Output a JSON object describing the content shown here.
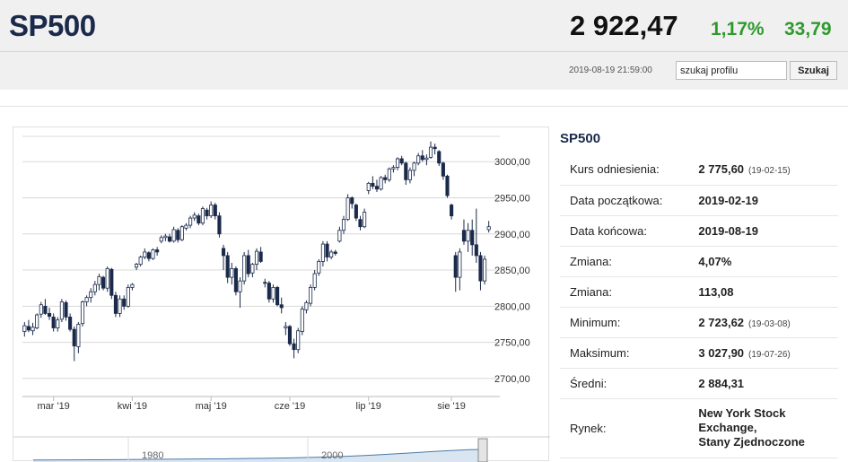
{
  "header": {
    "title": "SP500",
    "price": "2 922,47",
    "change_pct": "1,17%",
    "change_val": "33,79",
    "timestamp": "2019-08-19 21:59:00",
    "search_value": "szukaj profilu",
    "search_button": "Szukaj"
  },
  "info": {
    "title": "SP500",
    "rows": [
      {
        "label": "Kurs odniesienia:",
        "value": "2 775,60",
        "date": "(19-02-15)"
      },
      {
        "label": "Data początkowa:",
        "value": "2019-02-19",
        "date": ""
      },
      {
        "label": "Data końcowa:",
        "value": "2019-08-19",
        "date": ""
      },
      {
        "label": "Zmiana:",
        "value": "4,07%",
        "date": ""
      },
      {
        "label": "Zmiana:",
        "value": "113,08",
        "date": ""
      },
      {
        "label": "Minimum:",
        "value": "2 723,62",
        "date": "(19-03-08)"
      },
      {
        "label": "Maksimum:",
        "value": "3 027,90",
        "date": "(19-07-26)"
      },
      {
        "label": "Średni:",
        "value": "2 884,31",
        "date": ""
      }
    ],
    "market_label": "Rynek:",
    "market_lines": [
      "New York Stock",
      "Exchange,",
      "Stany Zjednoczone"
    ]
  },
  "colors": {
    "up_fill": "#ffffff",
    "down_fill": "#1b2a4a",
    "candle_stroke": "#1b2a4a",
    "grid": "#d8d8d8",
    "nav_fill": "#d9e6f2",
    "nav_line": "#4a79a8",
    "change_positive": "#2e9a2e"
  },
  "chart_data": {
    "type": "candlestick",
    "y_ticks": [
      "3000,00",
      "2950,00",
      "2900,00",
      "2850,00",
      "2800,00",
      "2750,00",
      "2700,00"
    ],
    "y_tick_values": [
      3000,
      2950,
      2900,
      2850,
      2800,
      2750,
      2700
    ],
    "ylim": [
      2685,
      3035
    ],
    "x_labels": [
      "mar '19",
      "kwi '19",
      "maj '19",
      "cze '19",
      "lip '19",
      "sie '19"
    ],
    "x_label_index": [
      7,
      26,
      45,
      64,
      83,
      103
    ],
    "navigator_labels": [
      "1980",
      "2000"
    ],
    "candles": [
      {
        "o": 2765,
        "h": 2778,
        "l": 2758,
        "c": 2773
      },
      {
        "o": 2772,
        "h": 2781,
        "l": 2764,
        "c": 2767
      },
      {
        "o": 2766,
        "h": 2777,
        "l": 2760,
        "c": 2771
      },
      {
        "o": 2770,
        "h": 2790,
        "l": 2768,
        "c": 2788
      },
      {
        "o": 2789,
        "h": 2806,
        "l": 2784,
        "c": 2802
      },
      {
        "o": 2800,
        "h": 2810,
        "l": 2788,
        "c": 2790
      },
      {
        "o": 2790,
        "h": 2798,
        "l": 2781,
        "c": 2786
      },
      {
        "o": 2785,
        "h": 2790,
        "l": 2765,
        "c": 2770
      },
      {
        "o": 2770,
        "h": 2785,
        "l": 2765,
        "c": 2781
      },
      {
        "o": 2782,
        "h": 2810,
        "l": 2778,
        "c": 2806
      },
      {
        "o": 2805,
        "h": 2808,
        "l": 2780,
        "c": 2785
      },
      {
        "o": 2785,
        "h": 2790,
        "l": 2765,
        "c": 2768
      },
      {
        "o": 2768,
        "h": 2772,
        "l": 2724,
        "c": 2745
      },
      {
        "o": 2744,
        "h": 2778,
        "l": 2735,
        "c": 2775
      },
      {
        "o": 2776,
        "h": 2808,
        "l": 2772,
        "c": 2806
      },
      {
        "o": 2806,
        "h": 2815,
        "l": 2800,
        "c": 2812
      },
      {
        "o": 2812,
        "h": 2825,
        "l": 2805,
        "c": 2820
      },
      {
        "o": 2820,
        "h": 2835,
        "l": 2815,
        "c": 2830
      },
      {
        "o": 2830,
        "h": 2845,
        "l": 2822,
        "c": 2841
      },
      {
        "o": 2840,
        "h": 2842,
        "l": 2822,
        "c": 2825
      },
      {
        "o": 2825,
        "h": 2855,
        "l": 2820,
        "c": 2852
      },
      {
        "o": 2851,
        "h": 2853,
        "l": 2810,
        "c": 2815
      },
      {
        "o": 2815,
        "h": 2820,
        "l": 2785,
        "c": 2790
      },
      {
        "o": 2790,
        "h": 2815,
        "l": 2785,
        "c": 2810
      },
      {
        "o": 2810,
        "h": 2815,
        "l": 2795,
        "c": 2800
      },
      {
        "o": 2800,
        "h": 2830,
        "l": 2798,
        "c": 2826
      },
      {
        "o": 2826,
        "h": 2832,
        "l": 2822,
        "c": 2830
      },
      {
        "o": 2854,
        "h": 2860,
        "l": 2850,
        "c": 2858
      },
      {
        "o": 2858,
        "h": 2870,
        "l": 2855,
        "c": 2868
      },
      {
        "o": 2868,
        "h": 2880,
        "l": 2865,
        "c": 2875
      },
      {
        "o": 2874,
        "h": 2876,
        "l": 2862,
        "c": 2866
      },
      {
        "o": 2866,
        "h": 2880,
        "l": 2864,
        "c": 2878
      },
      {
        "o": 2878,
        "h": 2882,
        "l": 2870,
        "c": 2875
      },
      {
        "o": 2890,
        "h": 2898,
        "l": 2887,
        "c": 2895
      },
      {
        "o": 2895,
        "h": 2900,
        "l": 2890,
        "c": 2897
      },
      {
        "o": 2896,
        "h": 2900,
        "l": 2888,
        "c": 2890
      },
      {
        "o": 2890,
        "h": 2910,
        "l": 2888,
        "c": 2906
      },
      {
        "o": 2905,
        "h": 2908,
        "l": 2888,
        "c": 2892
      },
      {
        "o": 2892,
        "h": 2912,
        "l": 2890,
        "c": 2910
      },
      {
        "o": 2908,
        "h": 2915,
        "l": 2905,
        "c": 2912
      },
      {
        "o": 2912,
        "h": 2925,
        "l": 2908,
        "c": 2922
      },
      {
        "o": 2922,
        "h": 2930,
        "l": 2918,
        "c": 2926
      },
      {
        "o": 2925,
        "h": 2928,
        "l": 2912,
        "c": 2915
      },
      {
        "o": 2915,
        "h": 2938,
        "l": 2912,
        "c": 2935
      },
      {
        "o": 2933,
        "h": 2936,
        "l": 2920,
        "c": 2925
      },
      {
        "o": 2925,
        "h": 2945,
        "l": 2922,
        "c": 2940
      },
      {
        "o": 2940,
        "h": 2943,
        "l": 2920,
        "c": 2925
      },
      {
        "o": 2925,
        "h": 2930,
        "l": 2895,
        "c": 2900
      },
      {
        "o": 2880,
        "h": 2885,
        "l": 2850,
        "c": 2870
      },
      {
        "o": 2870,
        "h": 2875,
        "l": 2832,
        "c": 2840
      },
      {
        "o": 2840,
        "h": 2860,
        "l": 2830,
        "c": 2852
      },
      {
        "o": 2852,
        "h": 2855,
        "l": 2815,
        "c": 2820
      },
      {
        "o": 2820,
        "h": 2840,
        "l": 2798,
        "c": 2835
      },
      {
        "o": 2835,
        "h": 2875,
        "l": 2830,
        "c": 2870
      },
      {
        "o": 2870,
        "h": 2878,
        "l": 2840,
        "c": 2845
      },
      {
        "o": 2846,
        "h": 2860,
        "l": 2840,
        "c": 2858
      },
      {
        "o": 2858,
        "h": 2880,
        "l": 2850,
        "c": 2876
      },
      {
        "o": 2875,
        "h": 2882,
        "l": 2860,
        "c": 2862
      },
      {
        "o": 2833,
        "h": 2838,
        "l": 2826,
        "c": 2832
      },
      {
        "o": 2832,
        "h": 2835,
        "l": 2805,
        "c": 2810
      },
      {
        "o": 2810,
        "h": 2830,
        "l": 2805,
        "c": 2826
      },
      {
        "o": 2826,
        "h": 2828,
        "l": 2800,
        "c": 2802
      },
      {
        "o": 2802,
        "h": 2812,
        "l": 2790,
        "c": 2798
      },
      {
        "o": 2770,
        "h": 2778,
        "l": 2760,
        "c": 2772
      },
      {
        "o": 2772,
        "h": 2774,
        "l": 2745,
        "c": 2748
      },
      {
        "o": 2748,
        "h": 2755,
        "l": 2728,
        "c": 2740
      },
      {
        "o": 2740,
        "h": 2770,
        "l": 2735,
        "c": 2766
      },
      {
        "o": 2765,
        "h": 2800,
        "l": 2760,
        "c": 2796
      },
      {
        "o": 2795,
        "h": 2808,
        "l": 2790,
        "c": 2805
      },
      {
        "o": 2804,
        "h": 2830,
        "l": 2800,
        "c": 2826
      },
      {
        "o": 2826,
        "h": 2850,
        "l": 2822,
        "c": 2845
      },
      {
        "o": 2846,
        "h": 2865,
        "l": 2842,
        "c": 2862
      },
      {
        "o": 2862,
        "h": 2890,
        "l": 2855,
        "c": 2886
      },
      {
        "o": 2886,
        "h": 2890,
        "l": 2862,
        "c": 2868
      },
      {
        "o": 2868,
        "h": 2878,
        "l": 2865,
        "c": 2875
      },
      {
        "o": 2875,
        "h": 2878,
        "l": 2870,
        "c": 2873
      },
      {
        "o": 2890,
        "h": 2910,
        "l": 2888,
        "c": 2905
      },
      {
        "o": 2905,
        "h": 2925,
        "l": 2900,
        "c": 2920
      },
      {
        "o": 2920,
        "h": 2955,
        "l": 2918,
        "c": 2950
      },
      {
        "o": 2950,
        "h": 2952,
        "l": 2935,
        "c": 2942
      },
      {
        "o": 2940,
        "h": 2942,
        "l": 2918,
        "c": 2922
      },
      {
        "o": 2920,
        "h": 2925,
        "l": 2905,
        "c": 2910
      },
      {
        "o": 2910,
        "h": 2935,
        "l": 2908,
        "c": 2930
      },
      {
        "o": 2960,
        "h": 2972,
        "l": 2955,
        "c": 2970
      },
      {
        "o": 2970,
        "h": 2980,
        "l": 2962,
        "c": 2966
      },
      {
        "o": 2966,
        "h": 2975,
        "l": 2958,
        "c": 2962
      },
      {
        "o": 2962,
        "h": 2980,
        "l": 2960,
        "c": 2978
      },
      {
        "o": 2978,
        "h": 2982,
        "l": 2970,
        "c": 2975
      },
      {
        "o": 2975,
        "h": 2992,
        "l": 2972,
        "c": 2990
      },
      {
        "o": 2990,
        "h": 2995,
        "l": 2985,
        "c": 2992
      },
      {
        "o": 2992,
        "h": 3006,
        "l": 2988,
        "c": 3004
      },
      {
        "o": 3004,
        "h": 3008,
        "l": 2995,
        "c": 2998
      },
      {
        "o": 2998,
        "h": 3000,
        "l": 2968,
        "c": 2975
      },
      {
        "o": 2975,
        "h": 2992,
        "l": 2970,
        "c": 2988
      },
      {
        "o": 2988,
        "h": 3000,
        "l": 2980,
        "c": 2998
      },
      {
        "o": 2998,
        "h": 3012,
        "l": 2995,
        "c": 3008
      },
      {
        "o": 3008,
        "h": 3016,
        "l": 3000,
        "c": 3003
      },
      {
        "o": 3003,
        "h": 3010,
        "l": 2995,
        "c": 3005
      },
      {
        "o": 3006,
        "h": 3028,
        "l": 3004,
        "c": 3020
      },
      {
        "o": 3020,
        "h": 3025,
        "l": 3010,
        "c": 3018
      },
      {
        "o": 3014,
        "h": 3016,
        "l": 2994,
        "c": 2998
      },
      {
        "o": 2998,
        "h": 3000,
        "l": 2975,
        "c": 2980
      },
      {
        "o": 2980,
        "h": 2982,
        "l": 2950,
        "c": 2953
      },
      {
        "o": 2940,
        "h": 2942,
        "l": 2920,
        "c": 2925
      },
      {
        "o": 2870,
        "h": 2875,
        "l": 2820,
        "c": 2840
      },
      {
        "o": 2840,
        "h": 2880,
        "l": 2822,
        "c": 2875
      },
      {
        "o": 2905,
        "h": 2920,
        "l": 2885,
        "c": 2890
      },
      {
        "o": 2890,
        "h": 2915,
        "l": 2875,
        "c": 2905
      },
      {
        "o": 2905,
        "h": 2920,
        "l": 2870,
        "c": 2885
      },
      {
        "o": 2885,
        "h": 2935,
        "l": 2860,
        "c": 2870
      },
      {
        "o": 2870,
        "h": 2875,
        "l": 2822,
        "c": 2835
      },
      {
        "o": 2835,
        "h": 2870,
        "l": 2830,
        "c": 2865
      },
      {
        "o": 2906,
        "h": 2918,
        "l": 2902,
        "c": 2910
      }
    ],
    "navigator_values": [
      2,
      2,
      3,
      3,
      4,
      4,
      5,
      6,
      7,
      8,
      9,
      10,
      11,
      12,
      13,
      15,
      17,
      18,
      20,
      22,
      25,
      28,
      32,
      36,
      42,
      48,
      55,
      62,
      70,
      78,
      85,
      92,
      98,
      100
    ]
  }
}
